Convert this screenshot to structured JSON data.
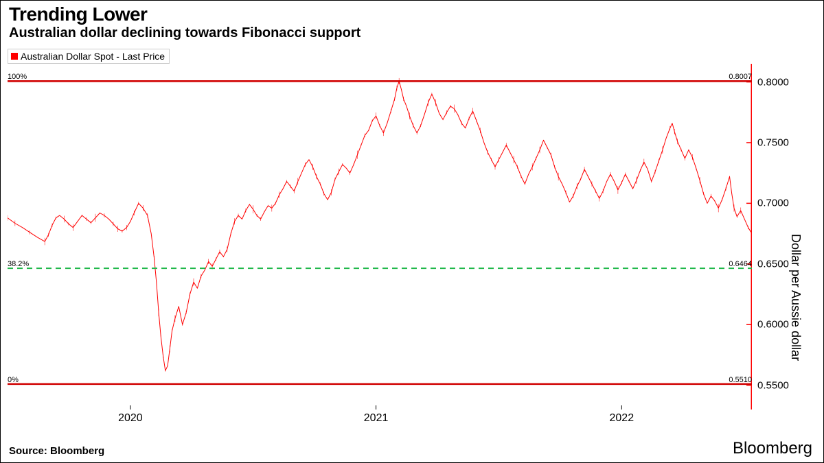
{
  "title": "Trending Lower",
  "subtitle": "Australian dollar declining towards Fibonacci support",
  "legend_label": "Australian Dollar Spot - Last Price",
  "source": "Source: Bloomberg",
  "brand": "Bloomberg",
  "chart": {
    "type": "line",
    "background_color": "#ffffff",
    "series_color": "#ff0000",
    "series_stroke_width": 1.0,
    "right_axis_color": "#ff0000",
    "right_axis_stroke_width": 1.5,
    "axis_color": "#000000",
    "tick_fontsize": 15,
    "title_fontsize": 28,
    "subtitle_fontsize": 20,
    "ylabel": "Dollar per Aussie dollar",
    "ylabel_fontsize": 18,
    "ylim": [
      0.53,
      0.815
    ],
    "ytick_step": 0.05,
    "yticks": [
      0.55,
      0.6,
      0.65,
      0.7,
      0.75,
      0.8
    ],
    "ytick_labels": [
      "0.5500",
      "0.6000",
      "0.6500",
      "0.7000",
      "0.7500",
      "0.8000"
    ],
    "x_start": "2019-07-01",
    "x_end": "2022-07-15",
    "x_ticks_years": [
      2020,
      2021,
      2022
    ],
    "x_tick_positions": [
      0.165,
      0.495,
      0.825
    ],
    "fib_lines": [
      {
        "pct_label": "100%",
        "value": 0.8007,
        "value_label": "0.8007",
        "color": "#d00000",
        "dash": false,
        "stroke_width": 2.6
      },
      {
        "pct_label": "38.2%",
        "value": 0.6464,
        "value_label": "0.6464",
        "color": "#1fb84a",
        "dash": true,
        "stroke_width": 2.0
      },
      {
        "pct_label": "0%",
        "value": 0.551,
        "value_label": "0.5510",
        "color": "#d00000",
        "dash": false,
        "stroke_width": 2.6
      }
    ],
    "data": [
      [
        0.0,
        0.688
      ],
      [
        0.01,
        0.6835
      ],
      [
        0.02,
        0.68
      ],
      [
        0.03,
        0.676
      ],
      [
        0.04,
        0.672
      ],
      [
        0.05,
        0.6685
      ],
      [
        0.055,
        0.674
      ],
      [
        0.06,
        0.682
      ],
      [
        0.065,
        0.688
      ],
      [
        0.07,
        0.69
      ],
      [
        0.076,
        0.687
      ],
      [
        0.082,
        0.683
      ],
      [
        0.088,
        0.68
      ],
      [
        0.094,
        0.685
      ],
      [
        0.1,
        0.69
      ],
      [
        0.106,
        0.687
      ],
      [
        0.112,
        0.684
      ],
      [
        0.118,
        0.688
      ],
      [
        0.124,
        0.692
      ],
      [
        0.13,
        0.69
      ],
      [
        0.136,
        0.687
      ],
      [
        0.142,
        0.683
      ],
      [
        0.148,
        0.679
      ],
      [
        0.154,
        0.677
      ],
      [
        0.16,
        0.68
      ],
      [
        0.165,
        0.685
      ],
      [
        0.17,
        0.692
      ],
      [
        0.176,
        0.7
      ],
      [
        0.182,
        0.696
      ],
      [
        0.188,
        0.69
      ],
      [
        0.193,
        0.675
      ],
      [
        0.197,
        0.655
      ],
      [
        0.2,
        0.635
      ],
      [
        0.203,
        0.61
      ],
      [
        0.206,
        0.59
      ],
      [
        0.209,
        0.574
      ],
      [
        0.212,
        0.562
      ],
      [
        0.215,
        0.566
      ],
      [
        0.218,
        0.58
      ],
      [
        0.221,
        0.595
      ],
      [
        0.225,
        0.605
      ],
      [
        0.23,
        0.615
      ],
      [
        0.235,
        0.6
      ],
      [
        0.24,
        0.61
      ],
      [
        0.245,
        0.625
      ],
      [
        0.25,
        0.635
      ],
      [
        0.255,
        0.63
      ],
      [
        0.26,
        0.64
      ],
      [
        0.265,
        0.645
      ],
      [
        0.27,
        0.652
      ],
      [
        0.275,
        0.648
      ],
      [
        0.28,
        0.654
      ],
      [
        0.285,
        0.66
      ],
      [
        0.29,
        0.656
      ],
      [
        0.295,
        0.662
      ],
      [
        0.3,
        0.675
      ],
      [
        0.305,
        0.685
      ],
      [
        0.31,
        0.69
      ],
      [
        0.315,
        0.687
      ],
      [
        0.32,
        0.694
      ],
      [
        0.325,
        0.699
      ],
      [
        0.33,
        0.695
      ],
      [
        0.335,
        0.69
      ],
      [
        0.34,
        0.687
      ],
      [
        0.345,
        0.693
      ],
      [
        0.35,
        0.698
      ],
      [
        0.355,
        0.696
      ],
      [
        0.36,
        0.7
      ],
      [
        0.365,
        0.707
      ],
      [
        0.37,
        0.712
      ],
      [
        0.375,
        0.718
      ],
      [
        0.38,
        0.714
      ],
      [
        0.385,
        0.71
      ],
      [
        0.39,
        0.718
      ],
      [
        0.395,
        0.725
      ],
      [
        0.4,
        0.732
      ],
      [
        0.405,
        0.736
      ],
      [
        0.41,
        0.73
      ],
      [
        0.415,
        0.722
      ],
      [
        0.42,
        0.716
      ],
      [
        0.425,
        0.708
      ],
      [
        0.43,
        0.703
      ],
      [
        0.435,
        0.709
      ],
      [
        0.44,
        0.72
      ],
      [
        0.445,
        0.726
      ],
      [
        0.45,
        0.732
      ],
      [
        0.455,
        0.729
      ],
      [
        0.46,
        0.725
      ],
      [
        0.465,
        0.732
      ],
      [
        0.47,
        0.74
      ],
      [
        0.475,
        0.748
      ],
      [
        0.48,
        0.756
      ],
      [
        0.485,
        0.76
      ],
      [
        0.49,
        0.768
      ],
      [
        0.495,
        0.772
      ],
      [
        0.5,
        0.764
      ],
      [
        0.505,
        0.758
      ],
      [
        0.51,
        0.766
      ],
      [
        0.515,
        0.776
      ],
      [
        0.52,
        0.786
      ],
      [
        0.523,
        0.795
      ],
      [
        0.526,
        0.8007
      ],
      [
        0.529,
        0.794
      ],
      [
        0.532,
        0.786
      ],
      [
        0.536,
        0.78
      ],
      [
        0.54,
        0.772
      ],
      [
        0.545,
        0.764
      ],
      [
        0.55,
        0.758
      ],
      [
        0.555,
        0.764
      ],
      [
        0.56,
        0.773
      ],
      [
        0.565,
        0.783
      ],
      [
        0.57,
        0.79
      ],
      [
        0.575,
        0.783
      ],
      [
        0.58,
        0.774
      ],
      [
        0.585,
        0.769
      ],
      [
        0.59,
        0.775
      ],
      [
        0.595,
        0.78
      ],
      [
        0.6,
        0.778
      ],
      [
        0.605,
        0.773
      ],
      [
        0.61,
        0.766
      ],
      [
        0.615,
        0.762
      ],
      [
        0.62,
        0.77
      ],
      [
        0.625,
        0.776
      ],
      [
        0.63,
        0.768
      ],
      [
        0.635,
        0.76
      ],
      [
        0.64,
        0.75
      ],
      [
        0.645,
        0.742
      ],
      [
        0.65,
        0.736
      ],
      [
        0.655,
        0.73
      ],
      [
        0.66,
        0.736
      ],
      [
        0.665,
        0.742
      ],
      [
        0.67,
        0.748
      ],
      [
        0.675,
        0.742
      ],
      [
        0.68,
        0.736
      ],
      [
        0.685,
        0.73
      ],
      [
        0.69,
        0.722
      ],
      [
        0.695,
        0.716
      ],
      [
        0.7,
        0.724
      ],
      [
        0.705,
        0.73
      ],
      [
        0.71,
        0.737
      ],
      [
        0.715,
        0.744
      ],
      [
        0.72,
        0.752
      ],
      [
        0.725,
        0.746
      ],
      [
        0.73,
        0.74
      ],
      [
        0.735,
        0.73
      ],
      [
        0.74,
        0.722
      ],
      [
        0.745,
        0.716
      ],
      [
        0.75,
        0.709
      ],
      [
        0.755,
        0.701
      ],
      [
        0.76,
        0.706
      ],
      [
        0.765,
        0.714
      ],
      [
        0.77,
        0.72
      ],
      [
        0.775,
        0.728
      ],
      [
        0.78,
        0.722
      ],
      [
        0.785,
        0.716
      ],
      [
        0.79,
        0.71
      ],
      [
        0.795,
        0.704
      ],
      [
        0.8,
        0.71
      ],
      [
        0.805,
        0.718
      ],
      [
        0.81,
        0.724
      ],
      [
        0.815,
        0.718
      ],
      [
        0.82,
        0.711
      ],
      [
        0.825,
        0.717
      ],
      [
        0.83,
        0.724
      ],
      [
        0.835,
        0.718
      ],
      [
        0.84,
        0.712
      ],
      [
        0.845,
        0.719
      ],
      [
        0.85,
        0.727
      ],
      [
        0.855,
        0.734
      ],
      [
        0.86,
        0.728
      ],
      [
        0.865,
        0.718
      ],
      [
        0.87,
        0.726
      ],
      [
        0.875,
        0.735
      ],
      [
        0.88,
        0.744
      ],
      [
        0.885,
        0.754
      ],
      [
        0.89,
        0.762
      ],
      [
        0.893,
        0.766
      ],
      [
        0.896,
        0.759
      ],
      [
        0.9,
        0.751
      ],
      [
        0.905,
        0.744
      ],
      [
        0.91,
        0.737
      ],
      [
        0.915,
        0.744
      ],
      [
        0.92,
        0.738
      ],
      [
        0.925,
        0.729
      ],
      [
        0.93,
        0.719
      ],
      [
        0.935,
        0.708
      ],
      [
        0.94,
        0.7
      ],
      [
        0.945,
        0.706
      ],
      [
        0.95,
        0.702
      ],
      [
        0.955,
        0.696
      ],
      [
        0.96,
        0.703
      ],
      [
        0.965,
        0.712
      ],
      [
        0.97,
        0.722
      ],
      [
        0.973,
        0.708
      ],
      [
        0.976,
        0.696
      ],
      [
        0.98,
        0.689
      ],
      [
        0.985,
        0.694
      ],
      [
        0.99,
        0.687
      ],
      [
        0.995,
        0.68
      ],
      [
        1.0,
        0.675
      ]
    ]
  }
}
